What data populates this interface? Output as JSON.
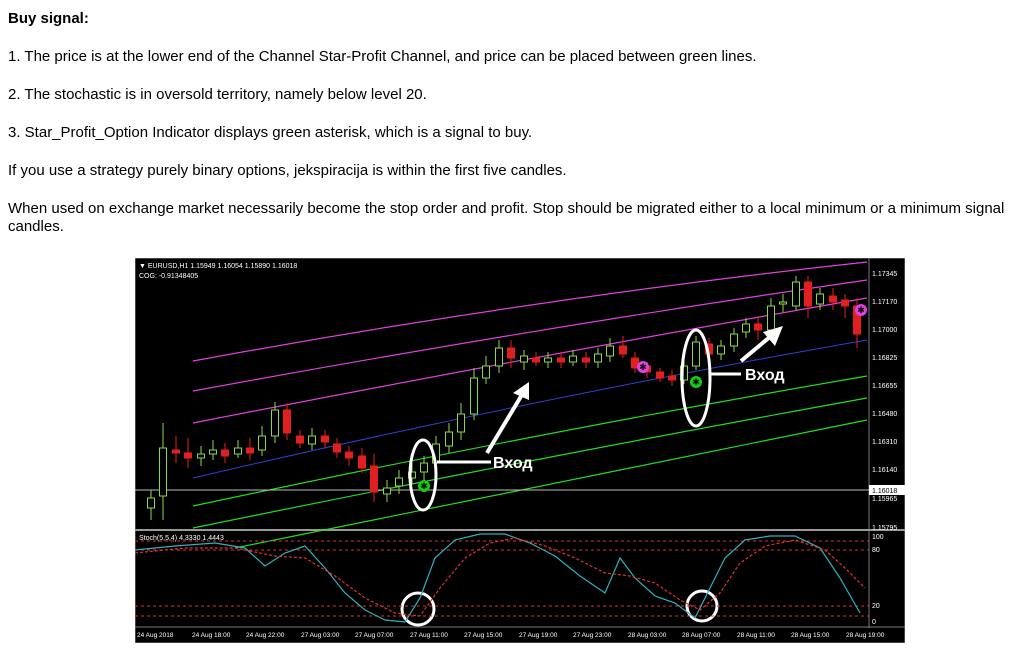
{
  "document": {
    "heading": "Buy signal:",
    "paragraphs": [
      "1. The price is at the lower end of the Channel Star-Profit Channel, and price can be placed between green lines.",
      "2. The stochastic is in oversold territory, namely below level 20.",
      "3. Star_Profit_Option Indicator displays green asterisk, which is a signal to buy.",
      "If you use a strategy purely binary options, jekspiracija is within the first five candles.",
      "When used on exchange market necessarily become the stop order and profit. Stop should be migrated either to a local minimum or a minimum signal candles."
    ]
  },
  "chart": {
    "header_line1": "▼ EURUSD,H1  1.15949 1.16054 1.15890 1.16018",
    "header_line2": "COG: -0.91348405",
    "price_labels": [
      "1.17345",
      "1.17170",
      "1.17000",
      "1.16825",
      "1.16655",
      "1.16480",
      "1.16310",
      "1.16140",
      "1.16018",
      "1.15965",
      "1.15795"
    ],
    "current_price": "1.16018",
    "stoch_header": "Stoch(5,5,4) 4.3330 1.4443",
    "stoch_levels": [
      "100",
      "80",
      "20",
      "0"
    ],
    "time_labels": [
      "24 Aug 2018",
      "24 Aug 18:00",
      "24 Aug 22:00",
      "27 Aug 03:00",
      "27 Aug 07:00",
      "27 Aug 11:00",
      "27 Aug 15:00",
      "27 Aug 19:00",
      "27 Aug 23:00",
      "28 Aug 03:00",
      "28 Aug 07:00",
      "28 Aug 11:00",
      "28 Aug 15:00",
      "28 Aug 19:00"
    ],
    "annotation_label": "Вход",
    "colors": {
      "background": "#000000",
      "bull": "#8bd84b",
      "bear": "#e02020",
      "magenta": "#e040e0",
      "green_line": "#22dd22",
      "blue_line": "#3040d0",
      "stoch_main": "#30b0c0",
      "stoch_signal": "#e03030"
    }
  }
}
